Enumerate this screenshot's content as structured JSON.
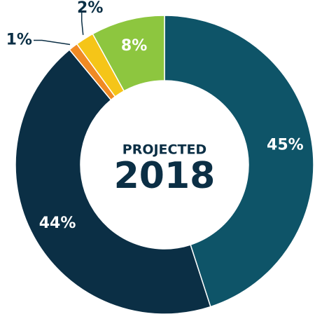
{
  "chart_data": {
    "type": "donut",
    "subtitle": "PROJECTED",
    "title": "2018",
    "values": [
      45,
      44,
      1,
      2,
      8
    ],
    "value_labels": [
      "45%",
      "44%",
      "1%",
      "2%",
      "8%"
    ],
    "colors": [
      "#0e5468",
      "#0b2f45",
      "#f08a24",
      "#f5c518",
      "#8dc63f"
    ]
  }
}
